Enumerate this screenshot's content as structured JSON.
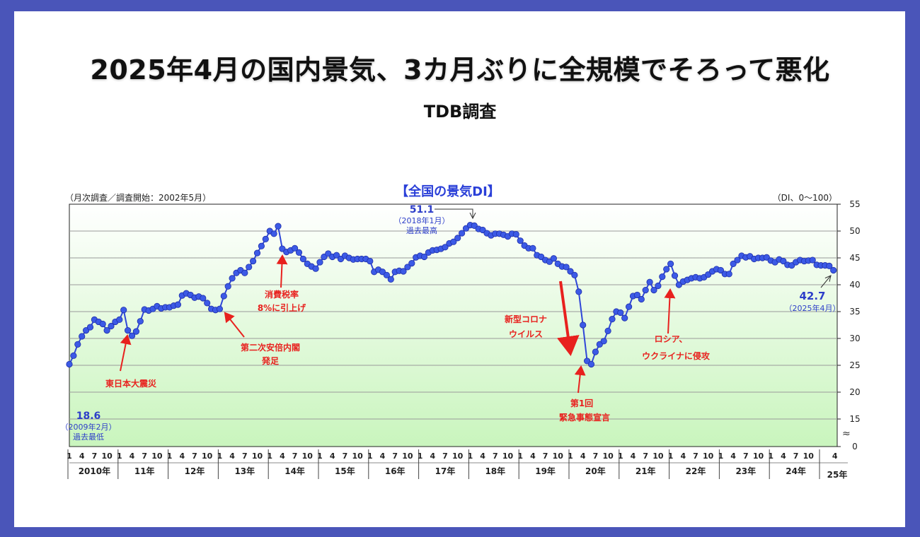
{
  "header": {
    "title": "2025年4月の国内景気、3カ月ぶりに全規模でそろって悪化",
    "subtitle": "TDB調査"
  },
  "colors": {
    "frame": "#4a55b9",
    "series": "#2f46d8",
    "annotation": "#e8211e",
    "label_blue": "#2d3ec9"
  },
  "chart_data": {
    "type": "line",
    "title": "【全国の景気DI】",
    "note_left": "（月次調査／調査開始：2002年5月）",
    "note_right": "（DI、0～100）",
    "ylabel": "DI",
    "ylim": [
      0,
      55
    ],
    "y_ticks": [
      "55",
      "50",
      "45",
      "40",
      "35",
      "30",
      "25",
      "20",
      "15",
      "0"
    ],
    "y_break": "≈",
    "x_start": "2010-01",
    "x_end": "2025-04",
    "month_ticks": [
      "1",
      "4",
      "7",
      "10"
    ],
    "last_year_month_ticks": [
      "4"
    ],
    "years": [
      "2010年",
      "11年",
      "12年",
      "13年",
      "14年",
      "15年",
      "16年",
      "17年",
      "18年",
      "19年",
      "20年",
      "21年",
      "22年",
      "23年",
      "24年",
      "25年"
    ],
    "grid": true,
    "series": [
      {
        "name": "全国の景気DI",
        "values": [
          25.2,
          26.8,
          28.9,
          30.4,
          31.5,
          32.1,
          33.5,
          33.1,
          32.7,
          31.5,
          32.3,
          33.1,
          33.5,
          35.3,
          31.5,
          30.5,
          31.3,
          33.2,
          35.4,
          35.2,
          35.5,
          36.0,
          35.6,
          35.8,
          35.8,
          36.1,
          36.3,
          38.0,
          38.4,
          38.1,
          37.6,
          37.8,
          37.5,
          36.6,
          35.5,
          35.3,
          35.5,
          37.9,
          39.7,
          41.2,
          42.2,
          42.7,
          42.2,
          43.3,
          44.4,
          45.9,
          47.2,
          48.5,
          50.0,
          49.5,
          50.9,
          46.7,
          46.1,
          46.4,
          46.8,
          46.0,
          44.8,
          43.9,
          43.4,
          43.0,
          44.2,
          45.2,
          45.8,
          45.2,
          45.5,
          44.8,
          45.4,
          45.0,
          44.7,
          44.8,
          44.8,
          44.8,
          44.4,
          42.4,
          42.8,
          42.4,
          41.8,
          41.0,
          42.4,
          42.6,
          42.5,
          43.3,
          44.0,
          45.1,
          45.4,
          45.2,
          46.0,
          46.4,
          46.5,
          46.7,
          47.0,
          47.7,
          48.0,
          48.7,
          49.6,
          50.5,
          51.1,
          51.0,
          50.4,
          50.2,
          49.6,
          49.2,
          49.5,
          49.5,
          49.3,
          49.0,
          49.5,
          49.4,
          48.2,
          47.3,
          46.8,
          46.8,
          45.5,
          45.2,
          44.6,
          44.3,
          44.9,
          43.9,
          43.4,
          43.3,
          42.5,
          41.8,
          38.7,
          32.5,
          25.8,
          25.2,
          27.5,
          28.9,
          29.5,
          31.4,
          33.6,
          35.0,
          34.8,
          33.8,
          35.9,
          37.9,
          38.1,
          37.3,
          39.0,
          40.5,
          39.0,
          39.8,
          41.5,
          42.9,
          43.9,
          41.7,
          40.0,
          40.6,
          40.9,
          41.2,
          41.4,
          41.2,
          41.4,
          41.9,
          42.5,
          42.9,
          42.7,
          42.0,
          42.0,
          43.9,
          44.6,
          45.4,
          45.1,
          45.3,
          44.8,
          45.0,
          45.0,
          45.1,
          44.5,
          44.2,
          44.7,
          44.4,
          43.7,
          43.6,
          44.2,
          44.6,
          44.4,
          44.5,
          44.6,
          43.7,
          43.6,
          43.6,
          43.5,
          42.7
        ]
      }
    ],
    "annotations": {
      "max": {
        "value": "51.1",
        "date": "（2018年1月）",
        "label": "過去最高"
      },
      "latest": {
        "value": "42.7",
        "date": "（2025年4月）"
      },
      "min": {
        "value": "18.6",
        "date": "（2009年2月）",
        "label": "過去最低"
      },
      "tax": [
        "消費税率",
        "8%に引上げ"
      ],
      "quake": [
        "東日本大震災"
      ],
      "abe": [
        "第二次安倍内閣",
        "発足"
      ],
      "covid": [
        "新型コロナ",
        "ウイルス"
      ],
      "emergency": [
        "第1回",
        "緊急事態宣言"
      ],
      "russia": [
        "ロシア、",
        "ウクライナに侵攻"
      ]
    }
  }
}
